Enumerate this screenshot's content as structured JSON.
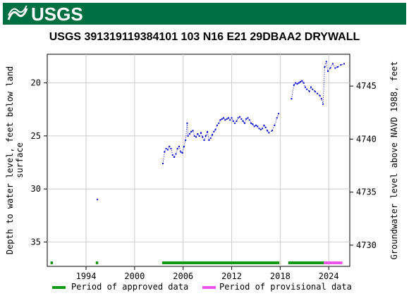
{
  "header": {
    "logo_text": "USGS",
    "title": "USGS 391319119384101 103  N16 E21 29DBAA2    DRYWALL"
  },
  "colors": {
    "banner": "#006f41",
    "data": "#0000cc",
    "approved": "#119911",
    "provisional": "#ee55ee"
  },
  "legend": {
    "approved_label": "Period of approved data",
    "provisional_label": "Period of provisional data"
  },
  "chart_data": {
    "type": "scatter",
    "xlabel": "",
    "ylabel_left": "Depth to water level, feet below land surface",
    "ylabel_right": "Groundwater level above NAVD 1988, feet",
    "xlim": [
      1989.2,
      2026.6
    ],
    "ylim_left": [
      37.3,
      17.3
    ],
    "ylim_right": [
      4728.0,
      4748.0
    ],
    "y_left_inverted": true,
    "x_ticks": [
      1994,
      2000,
      2006,
      2012,
      2018,
      2024
    ],
    "y_left_ticks": [
      20,
      25,
      30,
      35
    ],
    "y_right_ticks": [
      4745,
      4740,
      4735,
      4730
    ],
    "grid": true,
    "series": [
      {
        "name": "",
        "style": "dotted-line-with-markers",
        "segments": [
          [
            [
              1995.4,
              31.0
            ]
          ],
          [
            [
              2003.5,
              27.6
            ],
            [
              2003.7,
              26.5
            ],
            [
              2003.9,
              26.2
            ],
            [
              2004.1,
              26.3
            ],
            [
              2004.3,
              26.0
            ],
            [
              2004.5,
              26.2
            ],
            [
              2004.7,
              26.8
            ],
            [
              2004.9,
              27.0
            ],
            [
              2005.1,
              26.7
            ],
            [
              2005.3,
              26.2
            ],
            [
              2005.5,
              26.0
            ],
            [
              2005.7,
              26.5
            ],
            [
              2005.9,
              26.6
            ],
            [
              2006.1,
              26.0
            ],
            [
              2006.3,
              25.4
            ],
            [
              2006.5,
              23.8
            ],
            [
              2006.6,
              25.0
            ],
            [
              2006.8,
              24.8
            ],
            [
              2007.0,
              24.6
            ],
            [
              2007.2,
              24.5
            ],
            [
              2007.4,
              25.0
            ],
            [
              2007.6,
              25.1
            ],
            [
              2007.8,
              24.8
            ],
            [
              2008.0,
              25.0
            ],
            [
              2008.2,
              24.7
            ],
            [
              2008.4,
              25.1
            ],
            [
              2008.6,
              25.4
            ],
            [
              2008.8,
              25.0
            ],
            [
              2009.0,
              24.6
            ],
            [
              2009.2,
              25.4
            ],
            [
              2009.4,
              25.2
            ],
            [
              2009.6,
              24.9
            ],
            [
              2009.8,
              24.6
            ],
            [
              2010.0,
              24.4
            ],
            [
              2010.2,
              24.0
            ],
            [
              2010.4,
              23.8
            ],
            [
              2010.6,
              23.5
            ],
            [
              2010.8,
              23.4
            ],
            [
              2011.0,
              23.3
            ],
            [
              2011.2,
              23.5
            ],
            [
              2011.4,
              23.4
            ],
            [
              2011.6,
              23.3
            ],
            [
              2011.8,
              23.5
            ],
            [
              2012.0,
              23.3
            ],
            [
              2012.2,
              23.6
            ],
            [
              2012.4,
              23.8
            ],
            [
              2012.6,
              23.6
            ],
            [
              2012.8,
              23.3
            ],
            [
              2013.0,
              23.2
            ],
            [
              2013.2,
              23.4
            ],
            [
              2013.4,
              23.6
            ],
            [
              2013.6,
              23.8
            ],
            [
              2013.8,
              23.4
            ],
            [
              2014.0,
              23.3
            ],
            [
              2014.2,
              23.5
            ],
            [
              2014.4,
              23.8
            ],
            [
              2014.6,
              23.9
            ],
            [
              2014.8,
              24.1
            ],
            [
              2015.0,
              24.0
            ],
            [
              2015.2,
              24.1
            ],
            [
              2015.4,
              24.3
            ],
            [
              2015.6,
              24.4
            ],
            [
              2015.8,
              24.3
            ],
            [
              2016.0,
              24.0
            ],
            [
              2016.2,
              24.2
            ],
            [
              2016.4,
              24.5
            ],
            [
              2016.6,
              24.7
            ],
            [
              2017.0,
              24.5
            ],
            [
              2017.3,
              24.0
            ],
            [
              2017.6,
              23.3
            ],
            [
              2017.8,
              22.9
            ]
          ],
          [
            [
              2019.4,
              21.5
            ],
            [
              2019.7,
              20.2
            ],
            [
              2019.9,
              20.0
            ],
            [
              2020.1,
              20.1
            ],
            [
              2020.3,
              20.0
            ],
            [
              2020.5,
              19.9
            ],
            [
              2020.7,
              19.8
            ],
            [
              2020.9,
              20.0
            ],
            [
              2021.1,
              20.4
            ],
            [
              2021.3,
              20.6
            ],
            [
              2021.6,
              20.8
            ],
            [
              2021.8,
              20.4
            ],
            [
              2022.0,
              20.6
            ],
            [
              2022.3,
              20.8
            ],
            [
              2022.6,
              21.0
            ],
            [
              2022.9,
              21.2
            ],
            [
              2023.1,
              21.5
            ],
            [
              2023.3,
              22.0
            ],
            [
              2023.5,
              18.5
            ],
            [
              2023.7,
              18.0
            ],
            [
              2023.9,
              18.9
            ],
            [
              2024.2,
              18.6
            ],
            [
              2024.5,
              18.2
            ],
            [
              2024.8,
              18.6
            ],
            [
              2025.1,
              18.5
            ],
            [
              2025.5,
              18.3
            ],
            [
              2025.9,
              18.2
            ]
          ]
        ]
      }
    ],
    "approved_periods": [
      [
        1989.6,
        1989.9
      ],
      [
        1995.2,
        1995.5
      ],
      [
        2003.4,
        2017.9
      ],
      [
        2019.0,
        2023.4
      ]
    ],
    "provisional_periods": [
      [
        2023.4,
        2025.7
      ]
    ]
  }
}
